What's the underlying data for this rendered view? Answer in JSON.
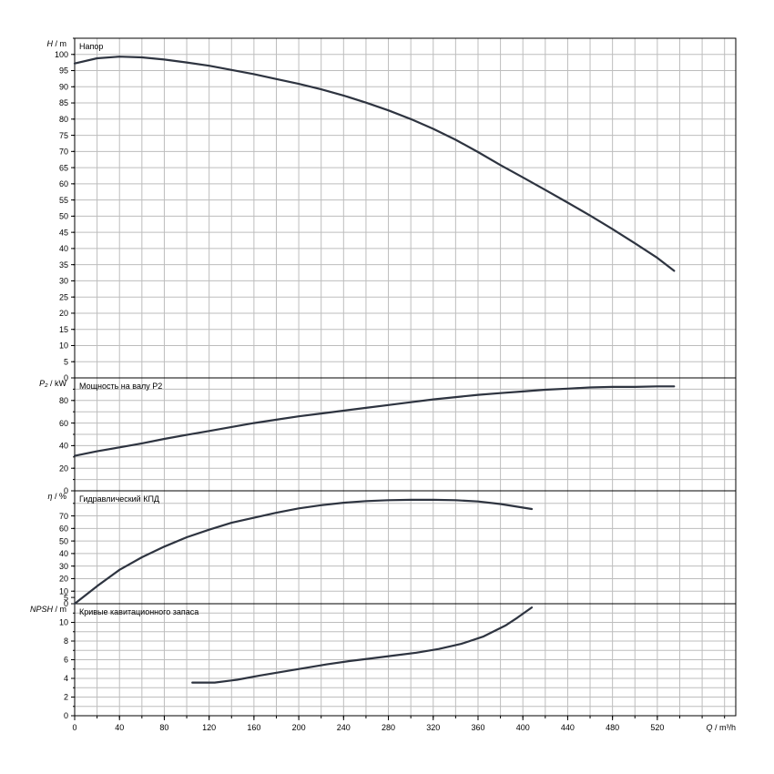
{
  "chart_data": [
    {
      "type": "line",
      "id": "head",
      "ylabel_italic": "H",
      "ylabel_unit": " / m",
      "title": "Напор",
      "ylim": [
        0,
        105
      ],
      "yticks": [
        0,
        5,
        10,
        15,
        20,
        25,
        30,
        35,
        40,
        45,
        50,
        55,
        60,
        65,
        70,
        75,
        80,
        85,
        90,
        95,
        100
      ],
      "ygrid_step": 5,
      "series": [
        {
          "x": [
            0,
            20,
            40,
            60,
            80,
            100,
            120,
            140,
            160,
            180,
            200,
            220,
            240,
            260,
            280,
            300,
            320,
            340,
            360,
            380,
            400,
            420,
            440,
            460,
            480,
            500,
            520,
            535
          ],
          "y": [
            97.2,
            98.8,
            99.3,
            99.1,
            98.4,
            97.5,
            96.5,
            95.2,
            93.9,
            92.4,
            90.9,
            89.2,
            87.3,
            85.1,
            82.7,
            80,
            77,
            73.6,
            69.8,
            65.8,
            62,
            58.1,
            54.2,
            50.2,
            46,
            41.6,
            37.1,
            33.1
          ]
        }
      ]
    },
    {
      "type": "line",
      "id": "power",
      "ylabel_italic": "P₂",
      "ylabel_unit": " / kW",
      "title": "Мощность на валу P2",
      "ylim": [
        0,
        100
      ],
      "yticks": [
        0,
        20,
        40,
        60,
        80
      ],
      "ygrid_step": 10,
      "series": [
        {
          "x": [
            0,
            20,
            40,
            60,
            80,
            100,
            120,
            140,
            160,
            180,
            200,
            220,
            240,
            260,
            280,
            300,
            320,
            340,
            360,
            380,
            400,
            420,
            440,
            460,
            480,
            500,
            520,
            535
          ],
          "y": [
            31,
            35,
            38.5,
            42,
            46,
            49.5,
            53,
            56.5,
            60,
            63,
            66,
            68.5,
            71,
            73.5,
            76,
            78.5,
            81,
            83,
            85,
            86.5,
            88,
            89.5,
            90.5,
            91.5,
            92,
            92,
            92.5,
            92.5
          ]
        }
      ]
    },
    {
      "type": "line",
      "id": "efficiency",
      "ylabel_italic": "η",
      "ylabel_unit": " / %",
      "title": "Гидравлический КПД",
      "ylim": [
        0,
        90
      ],
      "yticks": [
        0,
        5,
        10,
        20,
        30,
        40,
        50,
        60,
        70
      ],
      "ygrid_step": 10,
      "series": [
        {
          "x": [
            0,
            20,
            40,
            60,
            80,
            100,
            120,
            140,
            160,
            180,
            200,
            220,
            240,
            260,
            280,
            300,
            320,
            340,
            360,
            380,
            408
          ],
          "y": [
            0,
            14,
            27,
            37,
            45.5,
            53,
            59,
            64.5,
            68.5,
            72.5,
            76,
            78.5,
            80.5,
            81.8,
            82.5,
            82.8,
            82.8,
            82.5,
            81.5,
            79.5,
            75.5
          ]
        }
      ]
    },
    {
      "type": "line",
      "id": "npsh",
      "ylabel_italic": "NPSH",
      "ylabel_unit": " / m",
      "title": "Кривые кавитационного запаса",
      "ylim": [
        0,
        12
      ],
      "yticks": [
        0,
        2,
        4,
        6,
        8,
        10
      ],
      "ygrid_step": 1,
      "xlabel_italic": "Q",
      "xlabel_unit": " / m³/h",
      "xlim": [
        0,
        590
      ],
      "xticks": [
        0,
        40,
        80,
        120,
        160,
        200,
        240,
        280,
        320,
        360,
        400,
        440,
        480,
        520
      ],
      "xgrid_step": 20,
      "series": [
        {
          "x": [
            105,
            125,
            145,
            165,
            185,
            205,
            225,
            245,
            265,
            285,
            305,
            325,
            345,
            365,
            385,
            395,
            408
          ],
          "y": [
            3.55,
            3.55,
            3.85,
            4.3,
            4.7,
            5.1,
            5.5,
            5.85,
            6.15,
            6.45,
            6.75,
            7.15,
            7.7,
            8.5,
            9.7,
            10.5,
            11.6
          ]
        }
      ]
    }
  ]
}
